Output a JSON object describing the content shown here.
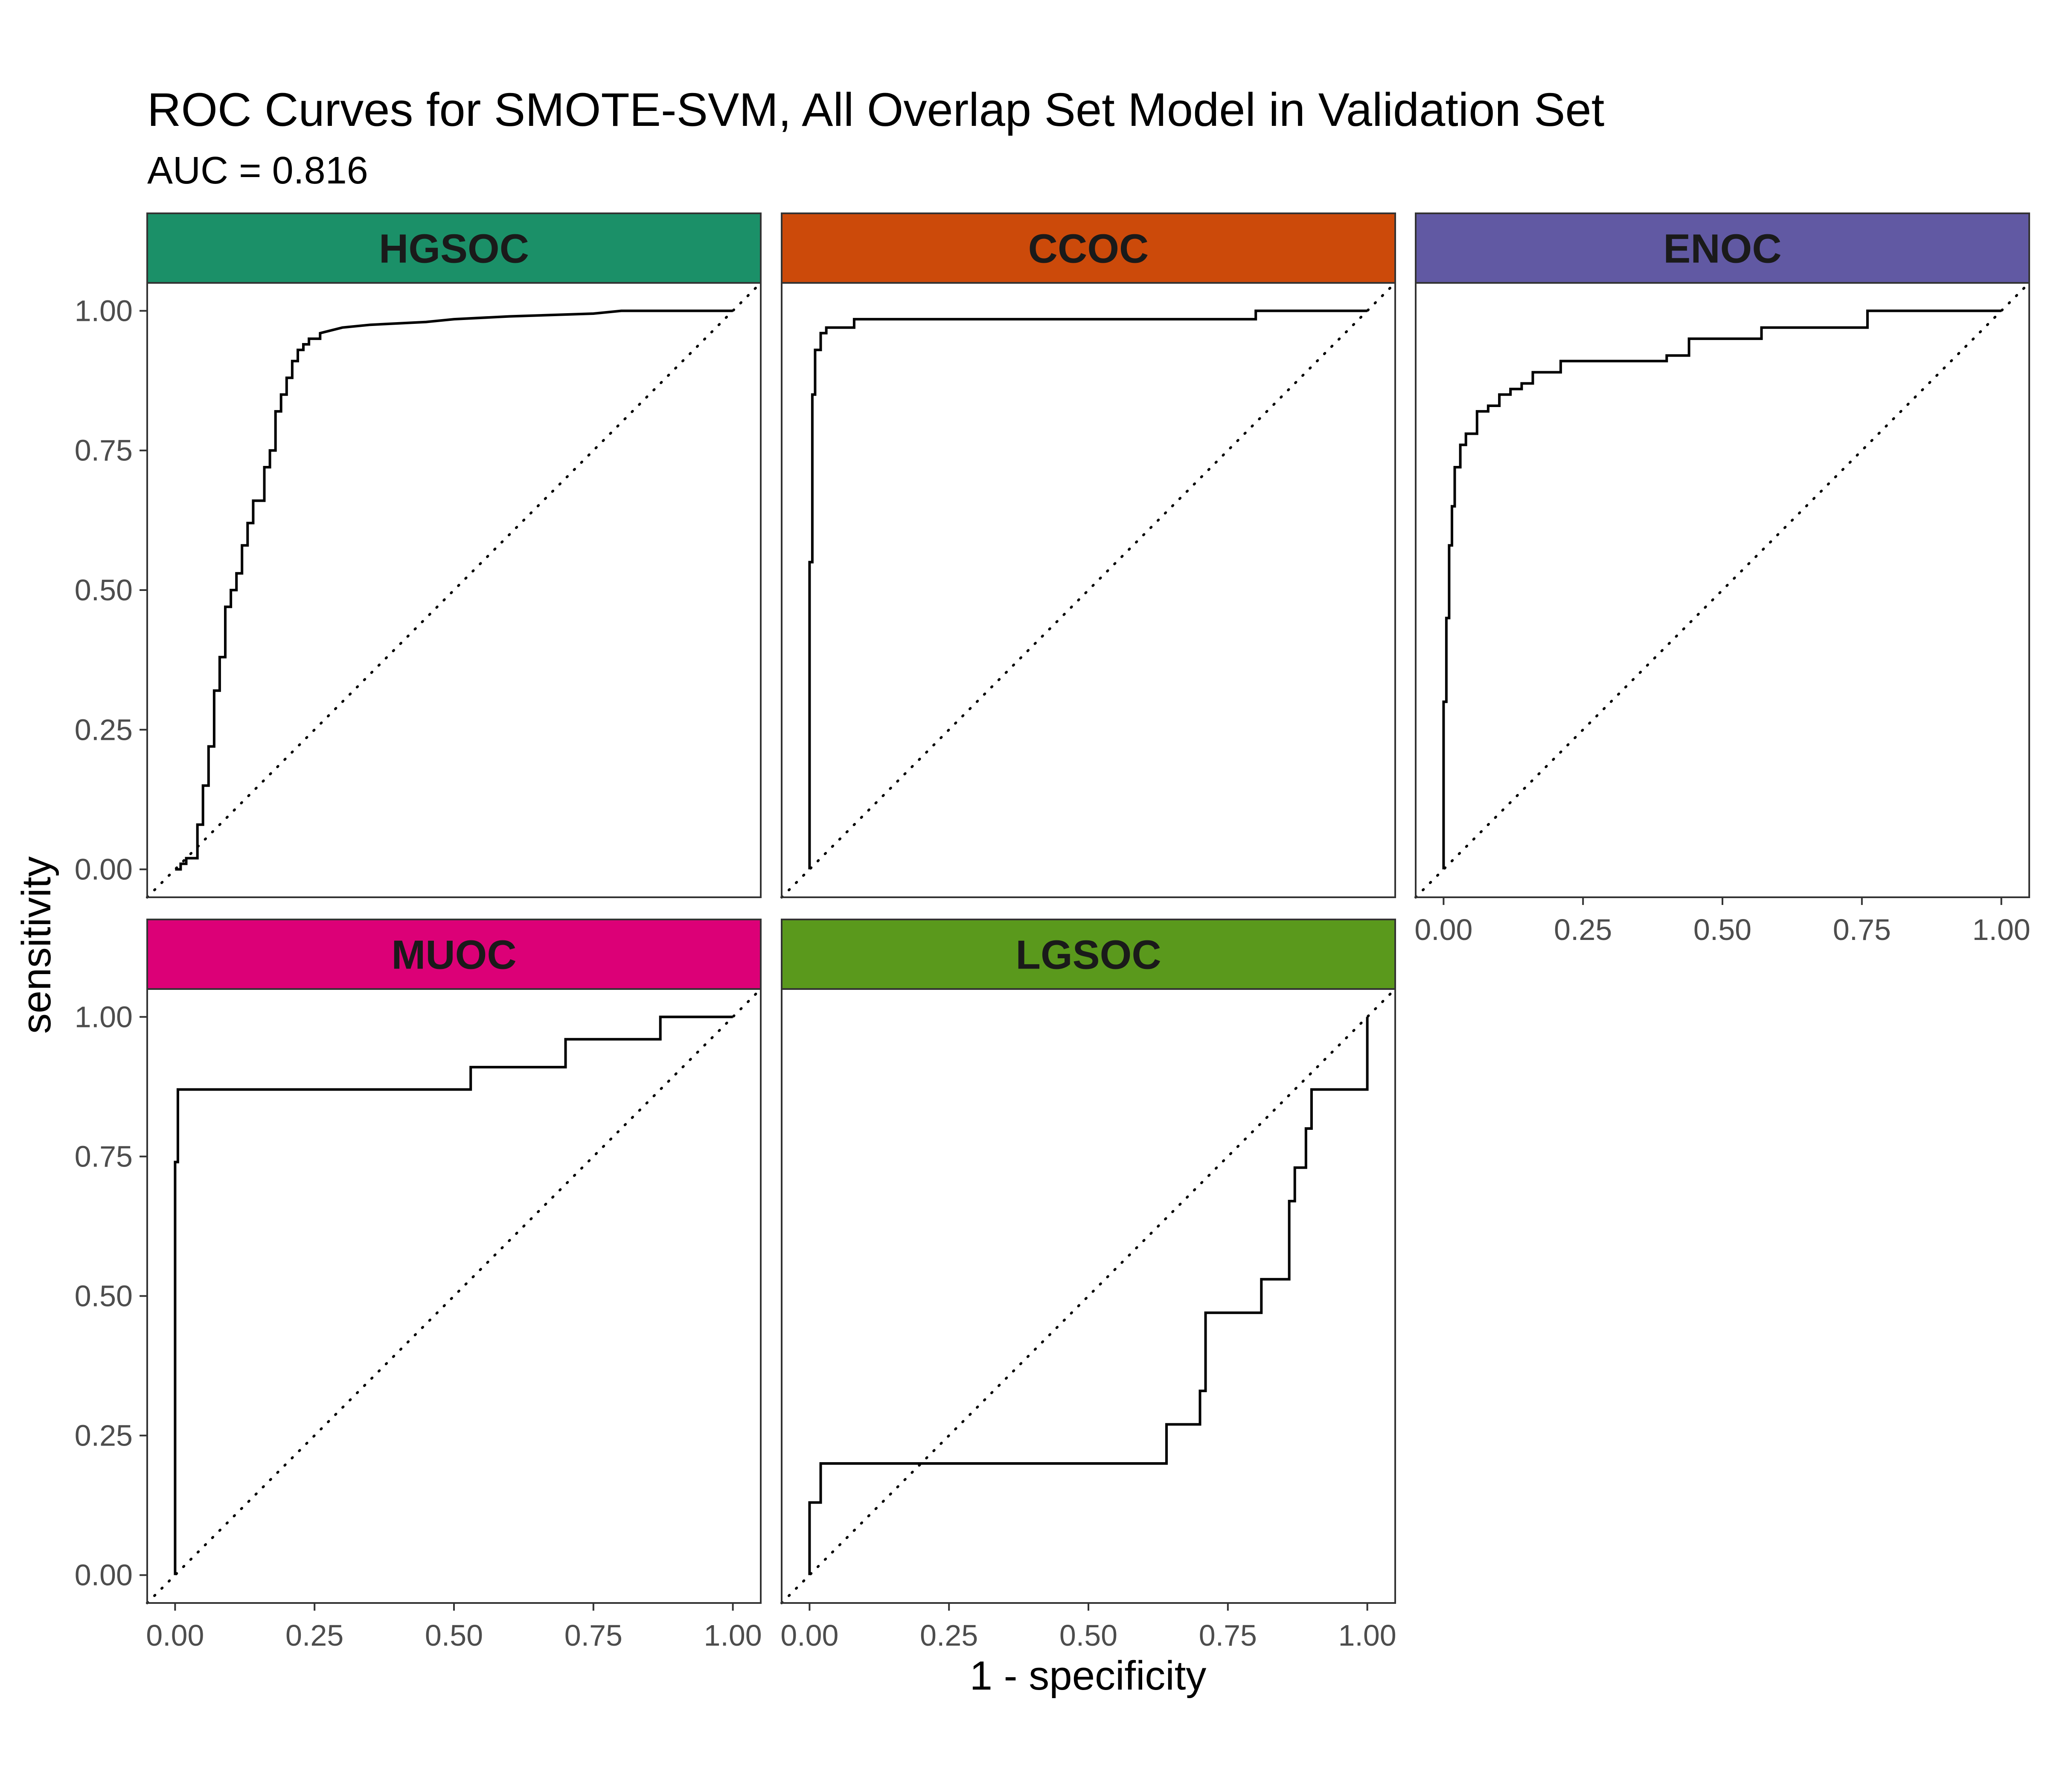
{
  "chart_data": {
    "type": "line",
    "title": "ROC Curves for SMOTE-SVM, All Overlap Set Model in Validation Set",
    "subtitle": "AUC = 0.816",
    "xlabel": "1 - specificity",
    "ylabel": "sensitivity",
    "xlim": [
      0,
      1
    ],
    "ylim": [
      0,
      1
    ],
    "ticks": [
      "0.00",
      "0.25",
      "0.50",
      "0.75",
      "1.00"
    ],
    "grid": false,
    "legend": "none",
    "reference_line": "diagonal dotted",
    "panels": [
      {
        "name": "HGSOC",
        "strip_color": "#1B9068",
        "x": [
          0.0,
          0.01,
          0.01,
          0.02,
          0.02,
          0.04,
          0.04,
          0.05,
          0.05,
          0.06,
          0.06,
          0.07,
          0.07,
          0.08,
          0.08,
          0.09,
          0.09,
          0.1,
          0.1,
          0.11,
          0.11,
          0.12,
          0.12,
          0.13,
          0.13,
          0.14,
          0.14,
          0.16,
          0.16,
          0.17,
          0.17,
          0.18,
          0.18,
          0.19,
          0.19,
          0.2,
          0.2,
          0.21,
          0.21,
          0.22,
          0.22,
          0.23,
          0.23,
          0.24,
          0.24,
          0.26,
          0.26,
          0.3,
          0.35,
          0.45,
          0.5,
          0.6,
          0.75,
          0.8,
          1.0
        ],
        "y": [
          0.0,
          0.0,
          0.01,
          0.01,
          0.02,
          0.02,
          0.08,
          0.08,
          0.15,
          0.15,
          0.22,
          0.22,
          0.32,
          0.32,
          0.38,
          0.38,
          0.47,
          0.47,
          0.5,
          0.5,
          0.53,
          0.53,
          0.58,
          0.58,
          0.62,
          0.62,
          0.66,
          0.66,
          0.72,
          0.72,
          0.75,
          0.75,
          0.82,
          0.82,
          0.85,
          0.85,
          0.88,
          0.88,
          0.91,
          0.91,
          0.93,
          0.93,
          0.94,
          0.94,
          0.95,
          0.95,
          0.96,
          0.97,
          0.975,
          0.98,
          0.985,
          0.99,
          0.995,
          1.0,
          1.0
        ]
      },
      {
        "name": "CCOC",
        "strip_color": "#CC4A0A",
        "x": [
          0.0,
          0.0,
          0.005,
          0.005,
          0.01,
          0.01,
          0.02,
          0.02,
          0.03,
          0.03,
          0.08,
          0.08,
          0.8,
          0.8,
          1.0
        ],
        "y": [
          0.0,
          0.55,
          0.55,
          0.85,
          0.85,
          0.93,
          0.93,
          0.96,
          0.96,
          0.97,
          0.97,
          0.985,
          0.985,
          1.0,
          1.0
        ],
        "note": "curve begins at x = 0.00"
      },
      {
        "name": "ENOC",
        "strip_color": "#6159A3",
        "x": [
          0.0,
          0.0,
          0.005,
          0.005,
          0.01,
          0.01,
          0.015,
          0.015,
          0.02,
          0.02,
          0.03,
          0.03,
          0.04,
          0.04,
          0.06,
          0.06,
          0.08,
          0.08,
          0.1,
          0.1,
          0.12,
          0.12,
          0.14,
          0.14,
          0.16,
          0.16,
          0.21,
          0.21,
          0.4,
          0.4,
          0.44,
          0.44,
          0.57,
          0.57,
          0.76,
          0.76,
          1.0
        ],
        "y": [
          0.0,
          0.3,
          0.3,
          0.45,
          0.45,
          0.58,
          0.58,
          0.65,
          0.65,
          0.72,
          0.72,
          0.76,
          0.76,
          0.78,
          0.78,
          0.82,
          0.82,
          0.83,
          0.83,
          0.85,
          0.85,
          0.86,
          0.86,
          0.87,
          0.87,
          0.89,
          0.89,
          0.91,
          0.91,
          0.92,
          0.92,
          0.95,
          0.95,
          0.97,
          0.97,
          1.0,
          1.0
        ]
      },
      {
        "name": "MUOC",
        "strip_color": "#DC0077",
        "x": [
          0.0,
          0.0,
          0.005,
          0.005,
          0.53,
          0.53,
          0.7,
          0.7,
          0.87,
          0.87,
          1.0
        ],
        "y": [
          0.0,
          0.74,
          0.74,
          0.87,
          0.87,
          0.91,
          0.91,
          0.96,
          0.96,
          1.0,
          1.0
        ]
      },
      {
        "name": "LGSOC",
        "strip_color": "#5A991C",
        "x": [
          0.0,
          0.0,
          0.02,
          0.02,
          0.64,
          0.64,
          0.7,
          0.7,
          0.71,
          0.71,
          0.81,
          0.81,
          0.86,
          0.86,
          0.87,
          0.87,
          0.89,
          0.89,
          0.9,
          0.9,
          1.0,
          1.0
        ],
        "y": [
          0.0,
          0.13,
          0.13,
          0.2,
          0.2,
          0.27,
          0.27,
          0.33,
          0.33,
          0.47,
          0.47,
          0.53,
          0.53,
          0.67,
          0.67,
          0.73,
          0.73,
          0.8,
          0.8,
          0.87,
          0.87,
          1.0
        ]
      }
    ]
  }
}
